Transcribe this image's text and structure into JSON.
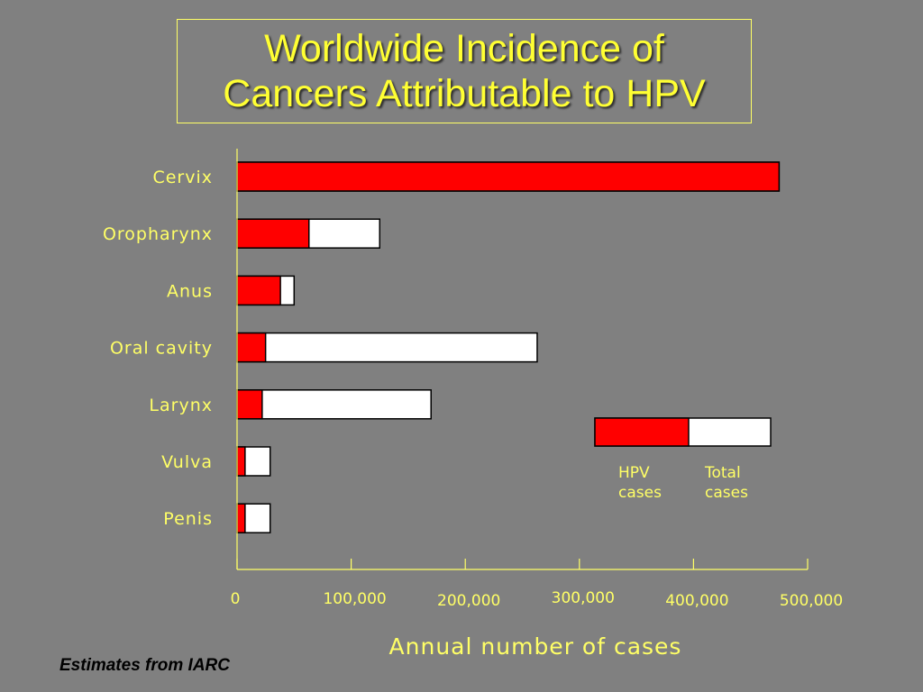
{
  "title": {
    "line1": "Worldwide Incidence of",
    "line2": "Cancers Attributable to HPV"
  },
  "footnote": "Estimates from IARC",
  "colors": {
    "background": "#808080",
    "text": "#ffff66",
    "hpv": "#ff0000",
    "total": "#ffffff"
  },
  "chart_data": {
    "type": "bar",
    "orientation": "horizontal",
    "stacked_overlay": true,
    "categories": [
      "Cervix",
      "Oropharynx",
      "Anus",
      "Oral cavity",
      "Larynx",
      "Vulva",
      "Penis"
    ],
    "series": [
      {
        "name": "Total cases",
        "values": [
          475000,
          125000,
          50000,
          263000,
          170000,
          29000,
          29000
        ]
      },
      {
        "name": "HPV cases",
        "values": [
          475000,
          63000,
          38000,
          25000,
          22000,
          7000,
          7000
        ]
      }
    ],
    "xticks": [
      0,
      100000,
      200000,
      300000,
      400000,
      500000
    ],
    "xtick_labels": [
      "0",
      "100,000",
      "200,000",
      "300,000",
      "400,000",
      "500,000"
    ],
    "xlim": [
      0,
      500000
    ],
    "xlabel": "Annual number of cases",
    "ylabel": "",
    "legend": {
      "placement": "right",
      "entries": [
        {
          "line1": "HPV",
          "line2": "cases"
        },
        {
          "line1": "Total",
          "line2": "cases"
        }
      ]
    },
    "grid": false
  }
}
